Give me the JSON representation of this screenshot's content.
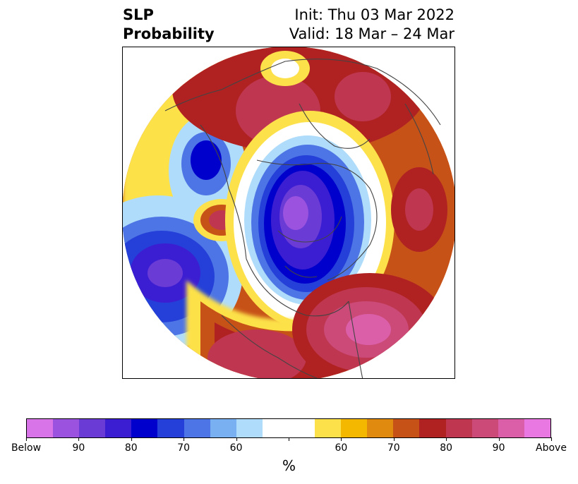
{
  "title": {
    "left_line1": "SLP",
    "left_line2": "Probability",
    "right_line1": "Init: Thu 03 Mar 2022",
    "right_line2": "Valid: 18 Mar – 24 Mar"
  },
  "colorbar": {
    "colors": [
      "#d874e8",
      "#9b53df",
      "#6b3bd6",
      "#3c1ed2",
      "#0000cc",
      "#2440d8",
      "#4e75e5",
      "#78b0f2",
      "#afdcfa",
      "#ffffff",
      "#ffffff",
      "#fde14a",
      "#f4b800",
      "#e08a10",
      "#c75218",
      "#b02222",
      "#bf3650",
      "#cb4a78",
      "#db5fa8",
      "#e978e2"
    ],
    "tick_labels": [
      "Below",
      "90",
      "80",
      "70",
      "60",
      "",
      "60",
      "70",
      "80",
      "90",
      "Above"
    ],
    "label": "%"
  }
}
